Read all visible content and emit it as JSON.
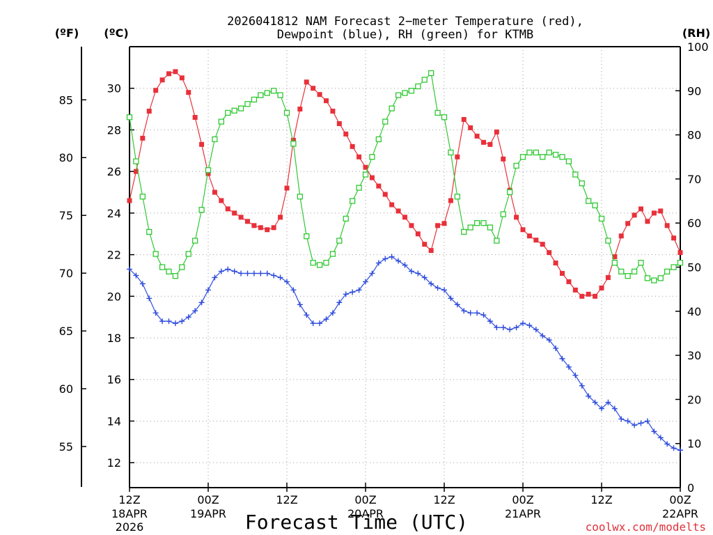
{
  "chart_data": {
    "type": "line",
    "title": "2026041812 NAM Forecast 2-meter Temperature (red), Dewpoint (blue), RH (green) for KTMB",
    "title_lines": [
      "2026041812 NAM Forecast 2−meter Temperature (red),",
      "Dewpoint (blue), RH (green) for KTMB"
    ],
    "xlabel": "Forecast Time (UTC)",
    "credit": "coolwx.com/modelts",
    "units": {
      "fahrenheit": "(ºF)",
      "celsius": "(ºC)",
      "rh": "(RH)"
    },
    "x_unit": "forecast hour",
    "xlim": [
      0,
      84
    ],
    "x_ticks": [
      {
        "hour": 0,
        "label": "12Z",
        "sublabel": "18APR",
        "year": "2026"
      },
      {
        "hour": 12,
        "label": "00Z",
        "sublabel": "19APR",
        "year": ""
      },
      {
        "hour": 24,
        "label": "12Z",
        "sublabel": "",
        "year": ""
      },
      {
        "hour": 36,
        "label": "00Z",
        "sublabel": "20APR",
        "year": ""
      },
      {
        "hour": 48,
        "label": "12Z",
        "sublabel": "",
        "year": ""
      },
      {
        "hour": 60,
        "label": "00Z",
        "sublabel": "21APR",
        "year": ""
      },
      {
        "hour": 72,
        "label": "12Z",
        "sublabel": "",
        "year": ""
      },
      {
        "hour": 84,
        "label": "00Z",
        "sublabel": "22APR",
        "year": ""
      }
    ],
    "y_celsius": {
      "ylim": [
        10.8,
        32.0
      ],
      "ticks": [
        12,
        14,
        16,
        18,
        20,
        22,
        24,
        26,
        28,
        30
      ]
    },
    "y_fahrenheit": {
      "ticks": [
        55,
        60,
        65,
        70,
        75,
        80,
        85
      ]
    },
    "y_rh": {
      "ylim": [
        0,
        100
      ],
      "ticks": [
        0,
        10,
        20,
        30,
        40,
        50,
        60,
        70,
        80,
        90,
        100
      ]
    },
    "grid": true,
    "series": [
      {
        "name": "Temperature",
        "axis": "celsius",
        "color": "#e8303a",
        "marker": "filled-square",
        "x": [
          0,
          1,
          2,
          3,
          4,
          5,
          6,
          7,
          8,
          9,
          10,
          11,
          12,
          13,
          14,
          15,
          16,
          17,
          18,
          19,
          20,
          21,
          22,
          23,
          24,
          25,
          26,
          27,
          28,
          29,
          30,
          31,
          32,
          33,
          34,
          35,
          36,
          37,
          38,
          39,
          40,
          41,
          42,
          43,
          44,
          45,
          46,
          47,
          48,
          49,
          50,
          51,
          52,
          53,
          54,
          55,
          56,
          57,
          58,
          59,
          60,
          61,
          62,
          63,
          64,
          65,
          66,
          67,
          68,
          69,
          70,
          71,
          72,
          73,
          74,
          75,
          76,
          77,
          78,
          79,
          80,
          81,
          82,
          83,
          84
        ],
        "values": [
          24.6,
          26.0,
          27.6,
          28.9,
          29.9,
          30.4,
          30.7,
          30.8,
          30.5,
          29.8,
          28.6,
          27.3,
          25.9,
          25.0,
          24.6,
          24.2,
          24.0,
          23.8,
          23.6,
          23.4,
          23.3,
          23.2,
          23.3,
          23.8,
          25.2,
          27.5,
          29.0,
          30.3,
          30.0,
          29.7,
          29.4,
          28.9,
          28.3,
          27.8,
          27.2,
          26.7,
          26.2,
          25.7,
          25.3,
          24.9,
          24.4,
          24.1,
          23.8,
          23.4,
          23.0,
          22.5,
          22.2,
          23.4,
          23.5,
          24.6,
          26.7,
          28.5,
          28.1,
          27.7,
          27.4,
          27.3,
          27.9,
          26.6,
          25.1,
          23.8,
          23.2,
          22.9,
          22.7,
          22.5,
          22.1,
          21.6,
          21.1,
          20.7,
          20.3,
          20.0,
          20.1,
          20.0,
          20.4,
          20.9,
          21.9,
          22.9,
          23.5,
          23.9,
          24.2,
          23.6,
          24.0,
          24.1,
          23.4,
          22.8,
          22.1
        ]
      },
      {
        "name": "Dewpoint",
        "axis": "celsius",
        "color": "#2d4bdc",
        "marker": "plus",
        "x": [
          0,
          1,
          2,
          3,
          4,
          5,
          6,
          7,
          8,
          9,
          10,
          11,
          12,
          13,
          14,
          15,
          16,
          17,
          18,
          19,
          20,
          21,
          22,
          23,
          24,
          25,
          26,
          27,
          28,
          29,
          30,
          31,
          32,
          33,
          34,
          35,
          36,
          37,
          38,
          39,
          40,
          41,
          42,
          43,
          44,
          45,
          46,
          47,
          48,
          49,
          50,
          51,
          52,
          53,
          54,
          55,
          56,
          57,
          58,
          59,
          60,
          61,
          62,
          63,
          64,
          65,
          66,
          67,
          68,
          69,
          70,
          71,
          72,
          73,
          74,
          75,
          76,
          77,
          78,
          79,
          80,
          81,
          82,
          83,
          84
        ],
        "values": [
          21.3,
          21.0,
          20.6,
          19.9,
          19.2,
          18.8,
          18.8,
          18.7,
          18.8,
          19.0,
          19.3,
          19.7,
          20.3,
          20.9,
          21.2,
          21.3,
          21.2,
          21.1,
          21.1,
          21.1,
          21.1,
          21.1,
          21.0,
          20.9,
          20.7,
          20.3,
          19.6,
          19.1,
          18.7,
          18.7,
          18.9,
          19.2,
          19.7,
          20.1,
          20.2,
          20.3,
          20.7,
          21.1,
          21.6,
          21.8,
          21.9,
          21.7,
          21.5,
          21.2,
          21.1,
          20.9,
          20.6,
          20.4,
          20.3,
          19.9,
          19.6,
          19.3,
          19.2,
          19.2,
          19.1,
          18.8,
          18.5,
          18.5,
          18.4,
          18.5,
          18.7,
          18.6,
          18.4,
          18.1,
          17.9,
          17.5,
          17.0,
          16.6,
          16.2,
          15.7,
          15.2,
          14.9,
          14.6,
          14.9,
          14.6,
          14.1,
          14.0,
          13.8,
          13.9,
          14.0,
          13.5,
          13.2,
          12.9,
          12.7,
          12.6
        ]
      },
      {
        "name": "RH",
        "axis": "rh",
        "color": "#2fc832",
        "marker": "open-square",
        "x": [
          0,
          1,
          2,
          3,
          4,
          5,
          6,
          7,
          8,
          9,
          10,
          11,
          12,
          13,
          14,
          15,
          16,
          17,
          18,
          19,
          20,
          21,
          22,
          23,
          24,
          25,
          26,
          27,
          28,
          29,
          30,
          31,
          32,
          33,
          34,
          35,
          36,
          37,
          38,
          39,
          40,
          41,
          42,
          43,
          44,
          45,
          46,
          47,
          48,
          49,
          50,
          51,
          52,
          53,
          54,
          55,
          56,
          57,
          58,
          59,
          60,
          61,
          62,
          63,
          64,
          65,
          66,
          67,
          68,
          69,
          70,
          71,
          72,
          73,
          74,
          75,
          76,
          77,
          78,
          79,
          80,
          81,
          82,
          83,
          84
        ],
        "values": [
          84,
          74,
          66,
          58,
          53,
          50,
          49,
          48,
          50,
          53,
          56,
          63,
          72,
          79,
          83,
          85,
          85.5,
          86,
          87,
          88,
          89,
          89.5,
          90,
          89,
          85,
          78,
          66,
          57,
          51,
          50.5,
          51,
          53,
          56,
          61,
          65,
          68,
          71,
          75,
          79,
          83,
          86,
          89,
          89.5,
          90,
          91,
          92.5,
          94,
          85,
          84,
          76,
          66,
          58,
          59,
          60,
          60,
          59,
          56,
          62,
          67,
          73,
          75,
          76,
          76,
          75,
          76,
          75.5,
          75,
          74,
          71,
          69,
          65,
          64,
          61,
          56,
          51,
          49,
          48,
          49,
          51,
          47.5,
          47,
          47.5,
          49,
          50,
          51
        ]
      }
    ]
  }
}
